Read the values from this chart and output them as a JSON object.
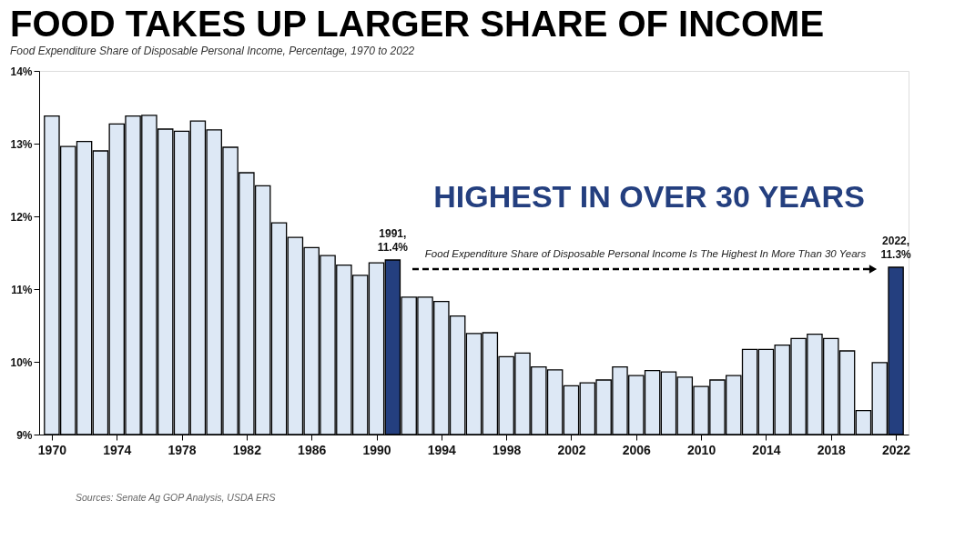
{
  "chart_data": {
    "type": "bar",
    "title": "FOOD TAKES UP LARGER SHARE OF INCOME",
    "subtitle": "Food Expenditure Share of Disposable Personal Income, Percentage, 1970 to 2022",
    "x": [
      1970,
      1971,
      1972,
      1973,
      1974,
      1975,
      1976,
      1977,
      1978,
      1979,
      1980,
      1981,
      1982,
      1983,
      1984,
      1985,
      1986,
      1987,
      1988,
      1989,
      1990,
      1991,
      1992,
      1993,
      1994,
      1995,
      1996,
      1997,
      1998,
      1999,
      2000,
      2001,
      2002,
      2003,
      2004,
      2005,
      2006,
      2007,
      2008,
      2009,
      2010,
      2011,
      2012,
      2013,
      2014,
      2015,
      2016,
      2017,
      2018,
      2019,
      2020,
      2021,
      2022
    ],
    "values": [
      13.38,
      12.96,
      13.03,
      12.9,
      13.27,
      13.38,
      13.39,
      13.2,
      13.17,
      13.31,
      13.19,
      12.95,
      12.6,
      12.42,
      11.91,
      11.71,
      11.57,
      11.46,
      11.33,
      11.19,
      11.36,
      11.4,
      10.89,
      10.89,
      10.83,
      10.63,
      10.39,
      10.4,
      10.07,
      10.12,
      9.93,
      9.89,
      9.67,
      9.71,
      9.75,
      9.93,
      9.81,
      9.88,
      9.86,
      9.79,
      9.66,
      9.75,
      9.81,
      10.17,
      10.17,
      10.23,
      10.32,
      10.38,
      10.32,
      10.15,
      9.33,
      9.99,
      11.3
    ],
    "colors": [
      "#dde8f5",
      "#dde8f5",
      "#dde8f5",
      "#dde8f5",
      "#dde8f5",
      "#dde8f5",
      "#dde8f5",
      "#dde8f5",
      "#dde8f5",
      "#dde8f5",
      "#dde8f5",
      "#dde8f5",
      "#dde8f5",
      "#dde8f5",
      "#dde8f5",
      "#dde8f5",
      "#dde8f5",
      "#dde8f5",
      "#dde8f5",
      "#dde8f5",
      "#dde8f5",
      "#243f7f",
      "#dde8f5",
      "#dde8f5",
      "#dde8f5",
      "#dde8f5",
      "#dde8f5",
      "#dde8f5",
      "#dde8f5",
      "#dde8f5",
      "#dde8f5",
      "#dde8f5",
      "#dde8f5",
      "#dde8f5",
      "#dde8f5",
      "#dde8f5",
      "#dde8f5",
      "#dde8f5",
      "#dde8f5",
      "#dde8f5",
      "#dde8f5",
      "#dde8f5",
      "#dde8f5",
      "#dde8f5",
      "#dde8f5",
      "#dde8f5",
      "#dde8f5",
      "#dde8f5",
      "#dde8f5",
      "#dde8f5",
      "#dde8f5",
      "#dde8f5",
      "#243f7f"
    ],
    "xlim": [
      1969.5,
      2022.5
    ],
    "xticks": [
      1970,
      1974,
      1978,
      1982,
      1986,
      1990,
      1994,
      1998,
      2002,
      2006,
      2010,
      2014,
      2018,
      2022
    ],
    "ylim": [
      9,
      14
    ],
    "yticks": [
      {
        "value": 9,
        "label": "9%"
      },
      {
        "value": 10,
        "label": "10%"
      },
      {
        "value": 11,
        "label": "11%"
      },
      {
        "value": 12,
        "label": "12%"
      },
      {
        "value": 13,
        "label": "13%"
      },
      {
        "value": 14,
        "label": "14%"
      }
    ],
    "annotations": [
      {
        "text": "1991,\n11.4%",
        "x": 1991,
        "y": 11.4
      },
      {
        "text": "2022,\n11.3%",
        "x": 2022,
        "y": 11.3
      },
      "HIGHEST IN OVER 30 YEARS",
      "Food Expenditure Share of Disposable Personal Income Is The Highest In More Than 30 Years",
      "Sources: Senate Ag GOP Analysis, USDA ERS"
    ],
    "grid": false
  }
}
